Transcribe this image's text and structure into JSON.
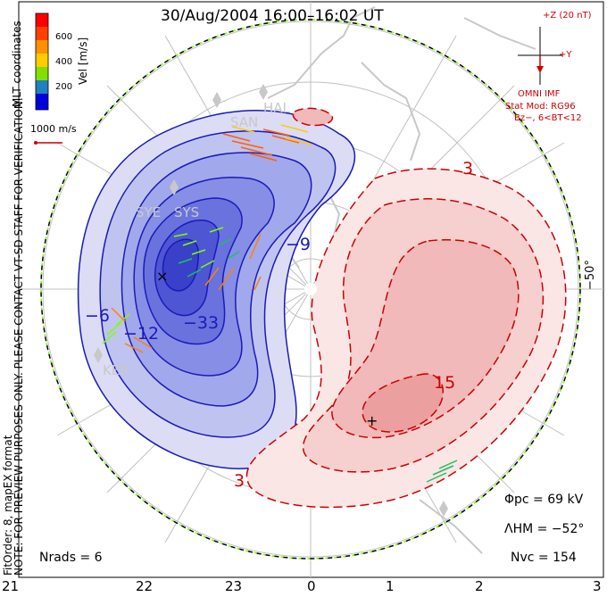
{
  "title": "30/Aug/2004 16:00–16:02 UT",
  "colorbar": {
    "label": "Vel [m/s]",
    "ticks": [
      "600",
      "400",
      "200"
    ],
    "scale_label": "1000 m/s",
    "colors": [
      "#ff0000",
      "#ff8000",
      "#ffcc00",
      "#80ff00",
      "#20c060",
      "#4040ff",
      "#0000cc"
    ]
  },
  "coordinates_label": "MLT coordinates",
  "preview_note": "NOTE: FOR PREVIEW PURPOSES ONLY. PLEASE CONTACT VT-SD STAFF FOR VERIFICATION.",
  "fit_note": "FitOrder: 8, mapEX format",
  "imf": {
    "top_label": "+Z (20 nT)",
    "right_label": "+Y",
    "source_label": "OMNI IMF",
    "model_line1": "Stat Mod: RG96",
    "model_line2": "Bz−, 6<BT<12"
  },
  "latitude_label": "−50°",
  "stats": {
    "phi_pc": "Φpc = 69 kV",
    "lambda_hm": "ΛHM = −52°",
    "n_vc": "Nvc = 154",
    "n_rads": "Nrads = 6"
  },
  "mlt_ticks": [
    "21",
    "22",
    "23",
    "0",
    "1",
    "2",
    "3"
  ],
  "contour_labels": {
    "blue": [
      "−9",
      "−6",
      "−33",
      "−12"
    ],
    "red": [
      "3",
      "15",
      "3"
    ]
  },
  "sites": [
    "SYE",
    "SYS",
    "KER",
    "SAN",
    "HAL"
  ],
  "colors": {
    "negative_potential": "#1a1ab8",
    "positive_potential": "#cc0000",
    "grid": "#c0c0c0",
    "land": "#c8c8c8",
    "boundary_dash": "#80ff00"
  }
}
